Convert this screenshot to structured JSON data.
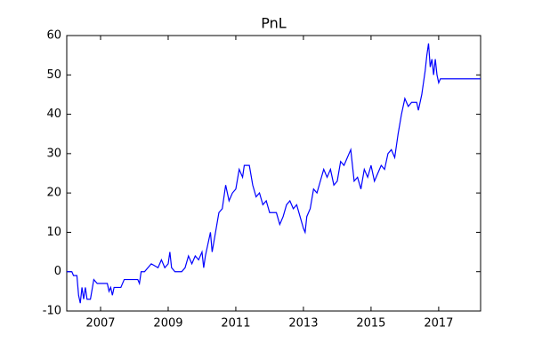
{
  "chart_data": {
    "type": "line",
    "title": "PnL",
    "x": [
      2006.0,
      2006.15,
      2006.2,
      2006.3,
      2006.35,
      2006.4,
      2006.45,
      2006.5,
      2006.55,
      2006.6,
      2006.7,
      2006.8,
      2006.9,
      2007.1,
      2007.2,
      2007.25,
      2007.3,
      2007.35,
      2007.4,
      2007.6,
      2007.7,
      2008.1,
      2008.15,
      2008.2,
      2008.3,
      2008.5,
      2008.7,
      2008.8,
      2008.9,
      2009.0,
      2009.05,
      2009.1,
      2009.2,
      2009.4,
      2009.5,
      2009.6,
      2009.7,
      2009.8,
      2009.9,
      2010.0,
      2010.05,
      2010.1,
      2010.2,
      2010.25,
      2010.3,
      2010.4,
      2010.5,
      2010.6,
      2010.7,
      2010.8,
      2010.9,
      2011.0,
      2011.1,
      2011.2,
      2011.25,
      2011.4,
      2011.5,
      2011.6,
      2011.7,
      2011.8,
      2011.9,
      2012.0,
      2012.2,
      2012.3,
      2012.4,
      2012.5,
      2012.6,
      2012.7,
      2012.8,
      2012.9,
      2013.0,
      2013.05,
      2013.1,
      2013.2,
      2013.3,
      2013.4,
      2013.5,
      2013.6,
      2013.7,
      2013.8,
      2013.9,
      2014.0,
      2014.1,
      2014.2,
      2014.3,
      2014.4,
      2014.5,
      2014.6,
      2014.7,
      2014.8,
      2014.9,
      2015.0,
      2015.1,
      2015.2,
      2015.3,
      2015.4,
      2015.5,
      2015.6,
      2015.7,
      2015.8,
      2015.9,
      2016.0,
      2016.1,
      2016.2,
      2016.35,
      2016.4,
      2016.5,
      2016.6,
      2016.65,
      2016.7,
      2016.75,
      2016.8,
      2016.85,
      2016.9,
      2016.95,
      2017.0,
      2017.05,
      2018.24
    ],
    "series": [
      {
        "name": "PnL",
        "color": "#0000ff",
        "values": [
          0,
          0,
          -1,
          -1,
          -6,
          -8,
          -4,
          -7,
          -4,
          -7,
          -7,
          -2,
          -3,
          -3,
          -3,
          -5,
          -4,
          -6,
          -4,
          -4,
          -2,
          -2,
          -3,
          0,
          0,
          2,
          1,
          3,
          1,
          2,
          5,
          1,
          0,
          0,
          1,
          4,
          2,
          4,
          3,
          5,
          1,
          4,
          8,
          10,
          5,
          10,
          15,
          16,
          22,
          18,
          20,
          21,
          26,
          24,
          27,
          27,
          22,
          19,
          20,
          17,
          18,
          15,
          15,
          12,
          14,
          17,
          18,
          16,
          17,
          14,
          11,
          10,
          14,
          16,
          21,
          20,
          23,
          26,
          24,
          26,
          22,
          23,
          28,
          27,
          29,
          31,
          23,
          24,
          21,
          26,
          24,
          27,
          23,
          25,
          27,
          26,
          30,
          31,
          29,
          35,
          40,
          44,
          42,
          43,
          43,
          41,
          45,
          51,
          55,
          58,
          52,
          54,
          50,
          54,
          50,
          48,
          49,
          49
        ]
      }
    ],
    "xlim": [
      2006.0,
      2018.24
    ],
    "xticks": [
      2007,
      2009,
      2011,
      2013,
      2015,
      2017
    ],
    "ylim": [
      -10,
      60
    ],
    "yticks": [
      -10,
      0,
      10,
      20,
      30,
      40,
      50,
      60
    ],
    "grid": false
  }
}
